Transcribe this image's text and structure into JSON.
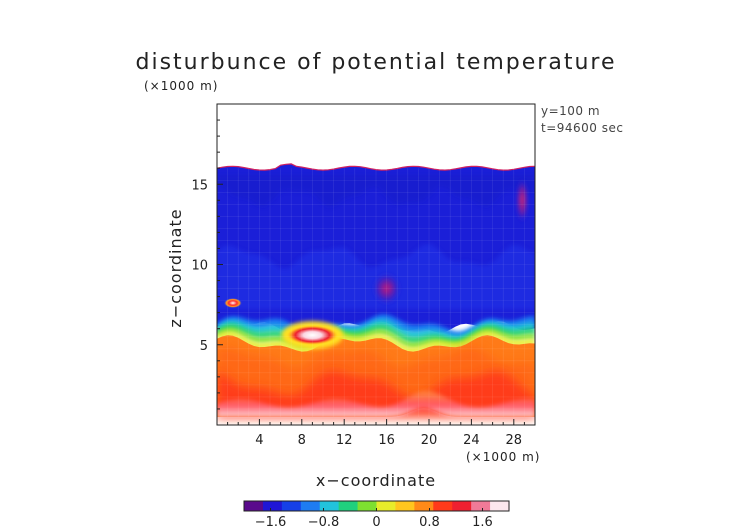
{
  "chart_data": {
    "type": "heatmap",
    "title": "disturbunce of potential temperature",
    "y_unit": "(×1000 m)",
    "x_unit": "(×1000 m)",
    "xlabel": "x−coordinate",
    "ylabel": "z−coordinate",
    "xlim": [
      0,
      30
    ],
    "ylim": [
      0,
      20
    ],
    "x_ticks": [
      4,
      8,
      12,
      16,
      20,
      24,
      28
    ],
    "x_tick_labels": [
      "4",
      "8",
      "12",
      "16",
      "20",
      "24",
      "28"
    ],
    "y_ticks": [
      5,
      10,
      15
    ],
    "y_tick_labels": [
      "5",
      "10",
      "15"
    ],
    "annotations": [
      "y=100 m",
      "t=94600 sec"
    ],
    "colorbar": {
      "range": [
        -2,
        2
      ],
      "ticks": [
        -1.6,
        -0.8,
        0,
        0.8,
        1.6
      ],
      "tick_labels": [
        "−1.6",
        "−0.8",
        "0",
        "0.8",
        "1.6"
      ],
      "colors": [
        "#5a0a8c",
        "#1f16d6",
        "#1640e8",
        "#1e7cf2",
        "#22c3dc",
        "#20d07e",
        "#7ee030",
        "#e8ec2a",
        "#ffc61e",
        "#ff8a18",
        "#ff3a1a",
        "#ee2030",
        "#f07a98",
        "#fce8ee"
      ]
    },
    "field_summary": {
      "upper_layer": "z ≈ 6.5–16 km: negative disturbance, about −1.2 to −1.4",
      "lower_layer": "z ≈ 0.5–6 km: positive disturbance, about +0.8 to +1.8",
      "top_boundary_km": 16,
      "bottom_boundary_km": 0.5,
      "blank_regions": "z above ~16 km and below ~0.5 km not shaded",
      "features": [
        {
          "type": "maximum",
          "x": 9,
          "z": 5.6,
          "value": 2.0
        },
        {
          "type": "maximum",
          "x": 1.5,
          "z": 7.6,
          "value": 1.9
        },
        {
          "type": "minimum",
          "x": 16,
          "z": 8.5,
          "value": -1.7
        },
        {
          "type": "minimum",
          "x": 28.8,
          "z": 14,
          "value": -1.6
        }
      ]
    }
  }
}
